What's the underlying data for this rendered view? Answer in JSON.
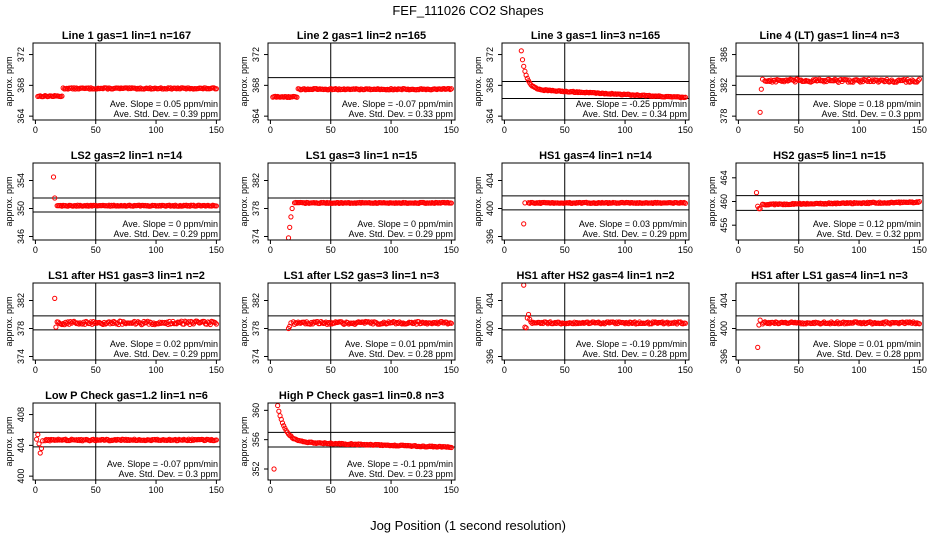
{
  "figure": {
    "title": "FEF_111026  CO2 Shapes",
    "xlabel": "Jog Position (1 second resolution)",
    "ylabel": "approx. ppm",
    "marker_color": "#ff0000"
  },
  "chart_data": [
    {
      "type": "scatter",
      "title": "Line 1 gas=1 lin=1 n=167",
      "ylabel": "approx. ppm",
      "xlim": [
        -2,
        153
      ],
      "ylim": [
        363.5,
        373.5
      ],
      "yticks": [
        364,
        368,
        372
      ],
      "xticks": [
        0,
        50,
        100,
        150
      ],
      "vline": 50,
      "hlines": [],
      "slope_text": "Ave. Slope = 0.05 ppm/min",
      "std_text": "Ave. Std. Dev. = 0.39 ppm",
      "profile": {
        "start": 2,
        "end": 150,
        "step": 1,
        "level": 367.6,
        "noise": 0.08,
        "pre": {
          "until": 22,
          "level": 366.6
        },
        "initial": []
      }
    },
    {
      "type": "scatter",
      "title": "Line 2 gas=1 lin=2 n=165",
      "ylabel": "approx. ppm",
      "xlim": [
        -2,
        153
      ],
      "ylim": [
        363.5,
        373.5
      ],
      "yticks": [
        364,
        368,
        372
      ],
      "xticks": [
        0,
        50,
        100,
        150
      ],
      "vline": 50,
      "hlines": [
        369
      ],
      "slope_text": "Ave. Slope = -0.07 ppm/min",
      "std_text": "Ave. Std. Dev. = 0.33 ppm",
      "profile": {
        "start": 2,
        "end": 150,
        "step": 1,
        "level": 367.5,
        "noise": 0.08,
        "pre": {
          "until": 22,
          "level": 366.5
        },
        "initial": []
      }
    },
    {
      "type": "scatter",
      "title": "Line 3 gas=1 lin=3 n=165",
      "ylabel": "approx. ppm",
      "xlim": [
        -2,
        153
      ],
      "ylim": [
        363.5,
        373.5
      ],
      "yticks": [
        364,
        368,
        372
      ],
      "xticks": [
        0,
        50,
        100,
        150
      ],
      "vline": 50,
      "hlines": [
        368.5,
        366.3
      ],
      "slope_text": "Ave. Slope = -0.25 ppm/min",
      "std_text": "Ave. Std. Dev. = 0.34 ppm",
      "profile": {
        "start": 14,
        "end": 150,
        "step": 1,
        "level": 367.5,
        "noise": 0.06,
        "decay": {
          "amp": 5.0,
          "tau": 4
        },
        "drift": -0.008,
        "initial": []
      }
    },
    {
      "type": "scatter",
      "title": "Line 4 (LT) gas=1 lin=4 n=3",
      "ylabel": "approx. ppm",
      "xlim": [
        -2,
        153
      ],
      "ylim": [
        377.5,
        387.5
      ],
      "yticks": [
        378,
        382,
        386
      ],
      "xticks": [
        0,
        50,
        100,
        150
      ],
      "vline": 50,
      "hlines": [
        383.2,
        380.8
      ],
      "slope_text": "Ave. Slope = 0.18 ppm/min",
      "std_text": "Ave. Std. Dev. = 0.3 ppm",
      "profile": {
        "start": 22,
        "end": 150,
        "step": 1,
        "level": 382.6,
        "noise": 0.2,
        "initial": [
          [
            18,
            378.5
          ],
          [
            19,
            381.5
          ],
          [
            20,
            382.8
          ]
        ]
      }
    },
    {
      "type": "scatter",
      "title": "LS2 gas=2 lin=1 n=14",
      "ylabel": "approx. ppm",
      "xlim": [
        -2,
        153
      ],
      "ylim": [
        345.5,
        356.5
      ],
      "yticks": [
        346,
        350,
        354
      ],
      "xticks": [
        0,
        50,
        100,
        150
      ],
      "vline": 50,
      "hlines": [
        351.5,
        349.5
      ],
      "slope_text": "Ave. Slope = 0 ppm/min",
      "std_text": "Ave. Std. Dev. = 0.29 ppm",
      "profile": {
        "start": 18,
        "end": 150,
        "step": 1,
        "level": 350.4,
        "noise": 0.07,
        "initial": [
          [
            15,
            354.5
          ],
          [
            16,
            351.5
          ]
        ]
      }
    },
    {
      "type": "scatter",
      "title": "LS1 gas=3 lin=1 n=15",
      "ylabel": "approx. ppm",
      "xlim": [
        -2,
        153
      ],
      "ylim": [
        373.5,
        384.5
      ],
      "yticks": [
        374,
        378,
        382
      ],
      "xticks": [
        0,
        50,
        100,
        150
      ],
      "vline": 50,
      "hlines": [
        379.5
      ],
      "slope_text": "Ave. Slope = 0 ppm/min",
      "std_text": "Ave. Std. Dev. = 0.29 ppm",
      "profile": {
        "start": 20,
        "end": 150,
        "step": 1,
        "level": 378.8,
        "noise": 0.07,
        "initial": [
          [
            15,
            373.8
          ],
          [
            16,
            375.3
          ],
          [
            17,
            376.8
          ],
          [
            18,
            378.0
          ]
        ]
      }
    },
    {
      "type": "scatter",
      "title": "HS1 gas=4 lin=1 n=14",
      "ylabel": "approx. ppm",
      "xlim": [
        -2,
        153
      ],
      "ylim": [
        395.5,
        406.5
      ],
      "yticks": [
        396,
        400,
        404
      ],
      "xticks": [
        0,
        50,
        100,
        150
      ],
      "vline": 50,
      "hlines": [
        401.8,
        399.8
      ],
      "slope_text": "Ave. Slope = 0.03 ppm/min",
      "std_text": "Ave. Std. Dev. = 0.29 ppm",
      "profile": {
        "start": 20,
        "end": 150,
        "step": 1,
        "level": 400.8,
        "noise": 0.07,
        "initial": [
          [
            16,
            397.8
          ],
          [
            17,
            400.8
          ]
        ]
      }
    },
    {
      "type": "scatter",
      "title": "HS2 gas=5 lin=1 n=15",
      "ylabel": "approx. ppm",
      "xlim": [
        -2,
        153
      ],
      "ylim": [
        453.5,
        466.5
      ],
      "yticks": [
        456,
        460,
        464
      ],
      "xticks": [
        0,
        50,
        100,
        150
      ],
      "vline": 50,
      "hlines": [
        461,
        458.5
      ],
      "slope_text": "Ave. Slope = 0.12 ppm/min",
      "std_text": "Ave. Std. Dev. = 0.32 ppm",
      "profile": {
        "start": 20,
        "end": 150,
        "step": 1,
        "level": 459.5,
        "noise": 0.1,
        "drift": 0.003,
        "initial": [
          [
            15,
            461.5
          ],
          [
            16,
            459.2
          ],
          [
            17,
            458.8
          ],
          [
            18,
            458.8
          ]
        ]
      }
    },
    {
      "type": "scatter",
      "title": "LS1 after HS1 gas=3 lin=1 n=2",
      "ylabel": "approx. ppm",
      "xlim": [
        -2,
        153
      ],
      "ylim": [
        373.5,
        384.5
      ],
      "yticks": [
        374,
        378,
        382
      ],
      "xticks": [
        0,
        50,
        100,
        150
      ],
      "vline": 50,
      "hlines": [
        379.8,
        377.8
      ],
      "slope_text": "Ave. Slope = 0.02 ppm/min",
      "std_text": "Ave. Std. Dev. = 0.29 ppm",
      "profile": {
        "start": 18,
        "end": 150,
        "step": 1,
        "level": 378.8,
        "noise": 0.25,
        "initial": [
          [
            16,
            382.3
          ],
          [
            17,
            378.2
          ]
        ]
      }
    },
    {
      "type": "scatter",
      "title": "LS1 after LS2 gas=3 lin=1 n=3",
      "ylabel": "approx. ppm",
      "xlim": [
        -2,
        153
      ],
      "ylim": [
        373.5,
        384.5
      ],
      "yticks": [
        374,
        378,
        382
      ],
      "xticks": [
        0,
        50,
        100,
        150
      ],
      "vline": 50,
      "hlines": [
        379.8,
        377.8
      ],
      "slope_text": "Ave. Slope = 0.01 ppm/min",
      "std_text": "Ave. Std. Dev. = 0.28 ppm",
      "profile": {
        "start": 19,
        "end": 150,
        "step": 1,
        "level": 378.8,
        "noise": 0.2,
        "initial": [
          [
            15,
            378.0
          ],
          [
            16,
            378.3
          ],
          [
            17,
            378.8
          ]
        ]
      }
    },
    {
      "type": "scatter",
      "title": "HS1 after HS2 gas=4 lin=1 n=2",
      "ylabel": "approx. ppm",
      "xlim": [
        -2,
        153
      ],
      "ylim": [
        395.5,
        406.5
      ],
      "yticks": [
        396,
        400,
        404
      ],
      "xticks": [
        0,
        50,
        100,
        150
      ],
      "vline": 50,
      "hlines": [
        401.8,
        399.8
      ],
      "slope_text": "Ave. Slope = -0.19 ppm/min",
      "std_text": "Ave. Std. Dev. = 0.28 ppm",
      "profile": {
        "start": 22,
        "end": 150,
        "step": 1,
        "level": 400.8,
        "noise": 0.15,
        "initial": [
          [
            16,
            406.2
          ],
          [
            17,
            400.2
          ],
          [
            18,
            400.1
          ],
          [
            19,
            401.5
          ],
          [
            20,
            402.0
          ],
          [
            21,
            401.3
          ]
        ]
      }
    },
    {
      "type": "scatter",
      "title": "HS1 after LS1 gas=4 lin=1 n=3",
      "ylabel": "approx. ppm",
      "xlim": [
        -2,
        153
      ],
      "ylim": [
        395.5,
        406.5
      ],
      "yticks": [
        396,
        400,
        404
      ],
      "xticks": [
        0,
        50,
        100,
        150
      ],
      "vline": 50,
      "hlines": [
        401.8,
        399.8
      ],
      "slope_text": "Ave. Slope = 0.01 ppm/min",
      "std_text": "Ave. Std. Dev. = 0.28 ppm",
      "profile": {
        "start": 20,
        "end": 150,
        "step": 1,
        "level": 400.8,
        "noise": 0.15,
        "initial": [
          [
            16,
            397.3
          ],
          [
            17,
            400.5
          ],
          [
            18,
            401.2
          ]
        ]
      }
    },
    {
      "type": "scatter",
      "title": "Low P Check gas=1.2 lin=1 n=6",
      "ylabel": "approx. ppm",
      "xlim": [
        -2,
        153
      ],
      "ylim": [
        399.5,
        409.5
      ],
      "yticks": [
        400,
        404,
        408
      ],
      "xticks": [
        0,
        50,
        100,
        150
      ],
      "vline": 50,
      "hlines": [
        405.7,
        403.8
      ],
      "slope_text": "Ave. Slope = -0.07 ppm/min",
      "std_text": "Ave. Std. Dev. = 0.3 ppm",
      "profile": {
        "start": 8,
        "end": 150,
        "step": 1,
        "level": 404.7,
        "noise": 0.1,
        "initial": [
          [
            1,
            404.8
          ],
          [
            2,
            405.4
          ],
          [
            3,
            404.2
          ],
          [
            4,
            403.0
          ],
          [
            5,
            403.6
          ],
          [
            6,
            404.6
          ]
        ]
      }
    },
    {
      "type": "scatter",
      "title": "High P Check gas=1 lin=0.8 n=3",
      "ylabel": "approx. ppm",
      "xlim": [
        -2,
        153
      ],
      "ylim": [
        350.5,
        361
      ],
      "yticks": [
        352,
        356,
        360
      ],
      "xticks": [
        0,
        50,
        100,
        150
      ],
      "vline": 50,
      "hlines": [
        357,
        355
      ],
      "slope_text": "Ave. Slope = -0.1 ppm/min",
      "std_text": "Ave. Std. Dev. = 0.23 ppm",
      "profile": {
        "start": 6,
        "end": 150,
        "step": 1,
        "level": 355.7,
        "noise": 0.07,
        "decay": {
          "amp": 5.0,
          "tau": 6
        },
        "drift": -0.005,
        "initial": [
          [
            3,
            352.0
          ]
        ]
      }
    }
  ]
}
